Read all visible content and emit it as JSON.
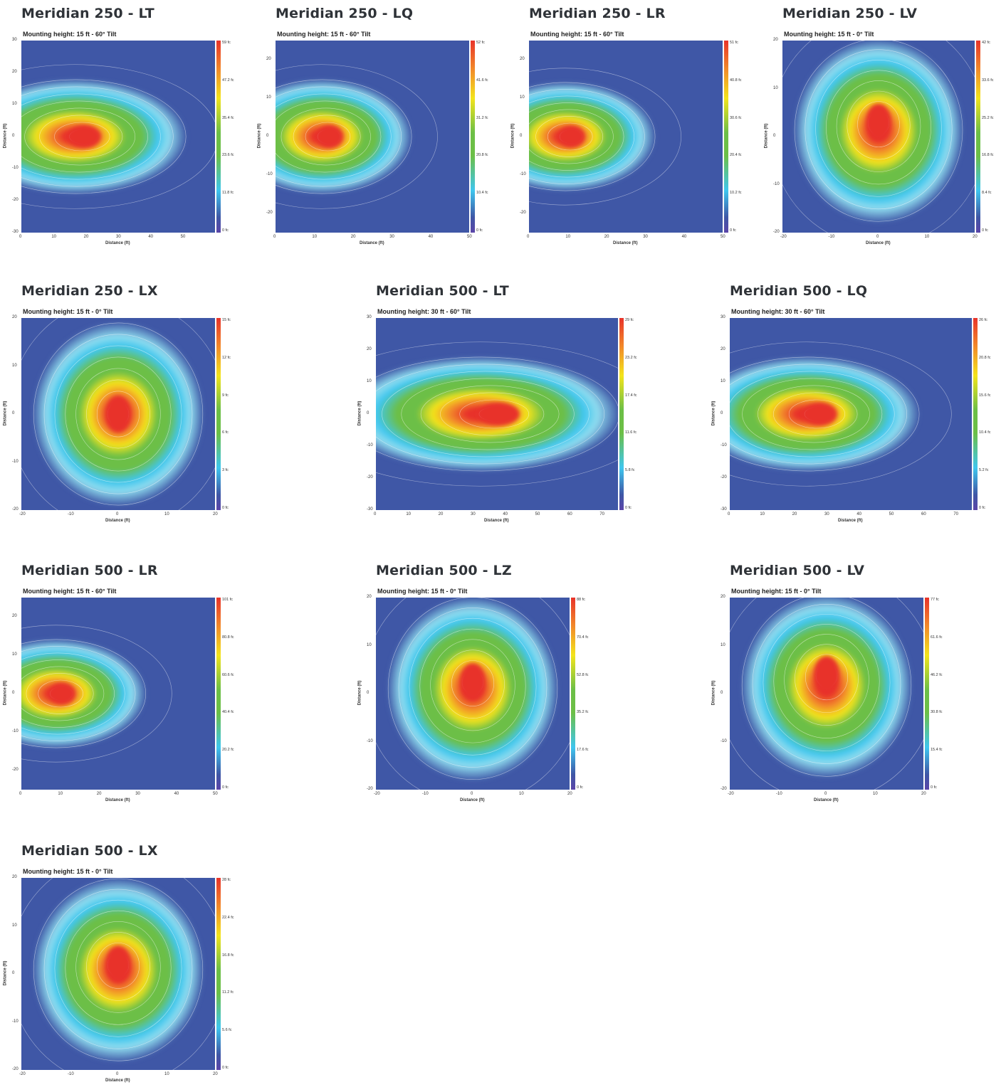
{
  "page": {
    "background": "#ffffff"
  },
  "colors": {
    "background_blue": "#3f57a6",
    "cyan": "#3fc6ee",
    "light_cyan": "#8fdcef",
    "green": "#6cbf47",
    "yellow": "#f3e41c",
    "orange": "#f28a2a",
    "red": "#e8332a",
    "contour": "#ffffff"
  },
  "chart_data": [
    {
      "type": "heatmap",
      "title": "Meridian 250 - LT",
      "subtitle": "Mounting height: 15 ft - 60° Tilt",
      "xlabel": "Distance (ft)",
      "ylabel": "Distance (ft)",
      "xlim": [
        0,
        60
      ],
      "ylim": [
        -30,
        30
      ],
      "xticks": [
        "0",
        "10",
        "20",
        "30",
        "40",
        "50"
      ],
      "yticks": [
        "30",
        "20",
        "10",
        "0",
        "-10",
        "-20",
        "-30"
      ],
      "colorbar_unit": "fc",
      "colorbar_max": 59,
      "colorbar_labels": [
        "59 fc",
        "47.2 fc",
        "35.4 fc",
        "23.6 fc",
        "11.8 fc",
        "0 fc"
      ],
      "peak_location": [
        19.5,
        0
      ],
      "distribution": "elongated forward throw, tight hotspot near 20 ft"
    },
    {
      "type": "heatmap",
      "title": "Meridian 250 - LQ",
      "subtitle": "Mounting height: 15 ft - 60° Tilt",
      "xlabel": "Distance (ft)",
      "ylabel": "Distance (ft)",
      "xlim": [
        0,
        50
      ],
      "ylim": [
        -25,
        25
      ],
      "xticks": [
        "0",
        "10",
        "20",
        "30",
        "40",
        "50"
      ],
      "yticks": [
        "20",
        "10",
        "0",
        "-10",
        "-20"
      ],
      "colorbar_unit": "fc",
      "colorbar_max": 52,
      "colorbar_labels": [
        "52 fc",
        "41.6 fc",
        "31.2 fc",
        "20.8 fc",
        "10.4 fc",
        "0 fc"
      ],
      "peak_location": [
        14,
        0
      ],
      "distribution": "oval, hotspot near 14 ft"
    },
    {
      "type": "heatmap",
      "title": "Meridian 250 - LR",
      "subtitle": "Mounting height: 15 ft - 60° Tilt",
      "xlabel": "Distance (ft)",
      "ylabel": "Distance (ft)",
      "xlim": [
        0,
        50
      ],
      "ylim": [
        -25,
        25
      ],
      "xticks": [
        "0",
        "10",
        "20",
        "30",
        "40",
        "50"
      ],
      "yticks": [
        "20",
        "10",
        "0",
        "-10",
        "-20"
      ],
      "colorbar_unit": "fc",
      "colorbar_max": 51,
      "colorbar_labels": [
        "51 fc",
        "40.8 fc",
        "30.6 fc",
        "20.4 fc",
        "10.2 fc",
        "0 fc"
      ],
      "peak_location": [
        11,
        0
      ],
      "distribution": "round, hotspot near 11 ft"
    },
    {
      "type": "heatmap",
      "title": "Meridian 250 - LV",
      "subtitle": "Mounting height: 15 ft - 0° Tilt",
      "xlabel": "Distance (ft)",
      "ylabel": "Distance (ft)",
      "xlim": [
        -20,
        20
      ],
      "ylim": [
        -20,
        20
      ],
      "xticks": [
        "-20",
        "-10",
        "0",
        "10",
        "20"
      ],
      "yticks": [
        "20",
        "10",
        "0",
        "-10",
        "-20"
      ],
      "colorbar_unit": "fc",
      "colorbar_max": 42,
      "colorbar_labels": [
        "42 fc",
        "33.6 fc",
        "25.2 fc",
        "16.8 fc",
        "8.4 fc",
        "0 fc"
      ],
      "peak_location": [
        0,
        3
      ],
      "distribution": "forward biased, hotspot above center"
    },
    {
      "type": "heatmap",
      "title": "Meridian 250 - LX",
      "subtitle": "Mounting height: 15 ft - 0° Tilt",
      "xlabel": "Distance (ft)",
      "ylabel": "Distance (ft)",
      "xlim": [
        -20,
        20
      ],
      "ylim": [
        -20,
        20
      ],
      "xticks": [
        "-20",
        "-10",
        "0",
        "10",
        "20"
      ],
      "yticks": [
        "20",
        "10",
        "0",
        "-10",
        "-20"
      ],
      "colorbar_unit": "fc",
      "colorbar_max": 15,
      "colorbar_labels": [
        "15 fc",
        "12 fc",
        "9 fc",
        "6 fc",
        "3 fc",
        "0 fc"
      ],
      "peak_location": [
        0,
        0
      ],
      "distribution": "wide symmetric, broad orange disc"
    },
    {
      "type": "heatmap",
      "title": "Meridian 500 - LT",
      "subtitle": "Mounting height: 30 ft - 60° Tilt",
      "xlabel": "Distance (ft)",
      "ylabel": "Distance (ft)",
      "xlim": [
        0,
        75
      ],
      "ylim": [
        -30,
        30
      ],
      "xticks": [
        "0",
        "10",
        "20",
        "30",
        "40",
        "50",
        "60",
        "70"
      ],
      "yticks": [
        "30",
        "20",
        "10",
        "0",
        "-10",
        "-20",
        "-30"
      ],
      "colorbar_unit": "fc",
      "colorbar_max": 29,
      "colorbar_labels": [
        "29 fc",
        "23.2 fc",
        "17.4 fc",
        "11.6 fc",
        "5.8 fc",
        "0 fc"
      ],
      "peak_location": [
        38,
        0
      ],
      "distribution": "elongated forward throw, hotspot near 38 ft"
    },
    {
      "type": "heatmap",
      "title": "Meridian 500 - LQ",
      "subtitle": "Mounting height: 30 ft - 60° Tilt",
      "xlabel": "Distance (ft)",
      "ylabel": "Distance (ft)",
      "xlim": [
        0,
        75
      ],
      "ylim": [
        -30,
        30
      ],
      "xticks": [
        "0",
        "10",
        "20",
        "30",
        "40",
        "50",
        "60",
        "70"
      ],
      "yticks": [
        "30",
        "20",
        "10",
        "0",
        "-10",
        "-20",
        "-30"
      ],
      "colorbar_unit": "fc",
      "colorbar_max": 26,
      "colorbar_labels": [
        "26 fc",
        "20.8 fc",
        "15.6 fc",
        "10.4 fc",
        "5.2 fc",
        "0 fc"
      ],
      "peak_location": [
        28,
        0
      ],
      "distribution": "large oval, hotspot near 28 ft"
    },
    {
      "type": "heatmap",
      "title": "Meridian 500 - LR",
      "subtitle": "Mounting height: 15 ft - 60° Tilt",
      "xlabel": "Distance (ft)",
      "ylabel": "Distance (ft)",
      "xlim": [
        0,
        50
      ],
      "ylim": [
        -25,
        25
      ],
      "xticks": [
        "0",
        "10",
        "20",
        "30",
        "40",
        "50"
      ],
      "yticks": [
        "20",
        "10",
        "0",
        "-10",
        "-20"
      ],
      "colorbar_unit": "fc",
      "colorbar_max": 101,
      "colorbar_labels": [
        "101 fc",
        "80.8 fc",
        "60.6 fc",
        "40.4 fc",
        "20.2 fc",
        "0 fc"
      ],
      "peak_location": [
        10.5,
        0
      ],
      "distribution": "round, tight hotspot near 10 ft"
    },
    {
      "type": "heatmap",
      "title": "Meridian 500 - LZ",
      "subtitle": "Mounting height: 15 ft - 0° Tilt",
      "xlabel": "Distance (ft)",
      "ylabel": "Distance (ft)",
      "xlim": [
        -20,
        20
      ],
      "ylim": [
        -20,
        20
      ],
      "xticks": [
        "-20",
        "-10",
        "0",
        "10",
        "20"
      ],
      "yticks": [
        "20",
        "10",
        "0",
        "-10",
        "-20"
      ],
      "colorbar_unit": "fc",
      "colorbar_max": 88,
      "colorbar_labels": [
        "88 fc",
        "70.4 fc",
        "52.8 fc",
        "35.2 fc",
        "17.6 fc",
        "0 fc"
      ],
      "peak_location": [
        0,
        2.5
      ],
      "distribution": "wide rectangular-oval, hotspot slightly above center"
    },
    {
      "type": "heatmap",
      "title": "Meridian 500 - LV",
      "subtitle": "Mounting height: 15 ft - 0° Tilt",
      "xlabel": "Distance (ft)",
      "ylabel": "Distance (ft)",
      "xlim": [
        -20,
        20
      ],
      "ylim": [
        -20,
        20
      ],
      "xticks": [
        "-20",
        "-10",
        "0",
        "10",
        "20"
      ],
      "yticks": [
        "20",
        "10",
        "0",
        "-10",
        "-20"
      ],
      "colorbar_unit": "fc",
      "colorbar_max": 77,
      "colorbar_labels": [
        "77 fc",
        "61.6 fc",
        "46.2 fc",
        "30.8 fc",
        "15.4 fc",
        "0 fc"
      ],
      "peak_location": [
        0,
        4
      ],
      "distribution": "forward biased, hotspot above center"
    },
    {
      "type": "heatmap",
      "title": "Meridian 500 - LX",
      "subtitle": "Mounting height: 15 ft - 0° Tilt",
      "xlabel": "Distance (ft)",
      "ylabel": "Distance (ft)",
      "xlim": [
        -20,
        20
      ],
      "ylim": [
        -20,
        20
      ],
      "xticks": [
        "-20",
        "-10",
        "0",
        "10",
        "20"
      ],
      "yticks": [
        "20",
        "10",
        "0",
        "-10",
        "-20"
      ],
      "colorbar_unit": "fc",
      "colorbar_max": 28,
      "colorbar_labels": [
        "28 fc",
        "22.4 fc",
        "16.8 fc",
        "11.2 fc",
        "5.6 fc",
        "0 fc"
      ],
      "peak_location": [
        0,
        2
      ],
      "distribution": "wide symmetric, broad orange disc"
    }
  ]
}
